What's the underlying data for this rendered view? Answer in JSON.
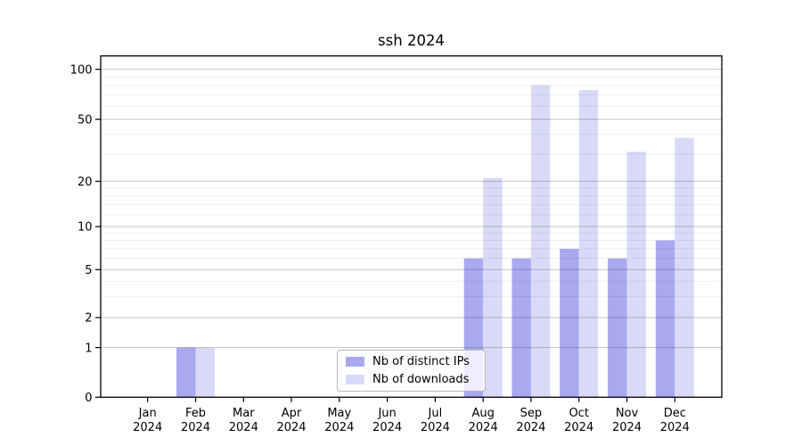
{
  "window": {
    "background": "#ffffff"
  },
  "chart_data": {
    "type": "bar",
    "title": "ssh 2024",
    "categories": [
      "Jan",
      "Feb",
      "Mar",
      "Apr",
      "May",
      "Jun",
      "Jul",
      "Aug",
      "Sep",
      "Oct",
      "Nov",
      "Dec"
    ],
    "category_year": "2024",
    "series": [
      {
        "name": "Nb of distinct IPs",
        "color": "#a9a9f0",
        "values": [
          0,
          1,
          0,
          0,
          0,
          0,
          0,
          6,
          6,
          7,
          6,
          8
        ]
      },
      {
        "name": "Nb of downloads",
        "color": "#dadaf8",
        "values": [
          0,
          1,
          0,
          0,
          0,
          0,
          0,
          21,
          80,
          75,
          31,
          38
        ]
      }
    ],
    "xlabel": "",
    "ylabel": "",
    "y_axis": {
      "scale": "symlog-like",
      "tick_labels": [
        "0",
        "1",
        "2",
        "5",
        "10",
        "20",
        "50",
        "100"
      ],
      "tick_values": [
        0,
        1,
        2,
        5,
        10,
        20,
        50,
        100
      ],
      "ylim": [
        0,
        120
      ]
    },
    "grid": "on",
    "legend_position": "lower center",
    "colors": {
      "frame": "#000000",
      "major_grid": "#c9c9c9",
      "minor_grid": "#ebebeb",
      "text": "#000000"
    }
  }
}
